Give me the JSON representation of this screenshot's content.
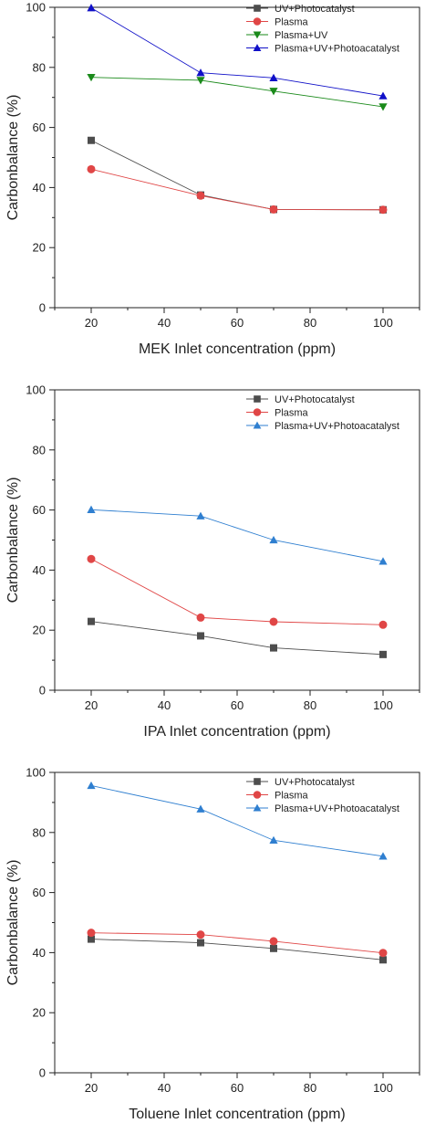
{
  "chart_data": [
    {
      "type": "line",
      "xlabel": "MEK Inlet concentration (ppm)",
      "ylabel": "Carbonbalance (%)",
      "xlim": [
        10,
        110
      ],
      "ylim": [
        0,
        100
      ],
      "xticks": [
        20,
        40,
        60,
        80,
        100
      ],
      "yticks": [
        0,
        20,
        40,
        60,
        80,
        100
      ],
      "x": [
        20,
        50,
        70,
        100
      ],
      "legend_position": "top-right",
      "grid": false,
      "series": [
        {
          "name": "UV+Photocatalyst",
          "values": [
            55.7,
            37.5,
            32.7,
            32.6
          ],
          "color": "#4d4d4d",
          "marker": "square"
        },
        {
          "name": "Plasma",
          "values": [
            46.1,
            37.3,
            32.7,
            32.6
          ],
          "color": "#e04646",
          "marker": "circle"
        },
        {
          "name": "Plasma+UV",
          "values": [
            76.7,
            75.7,
            72.1,
            66.9
          ],
          "color": "#1a8a1a",
          "marker": "triangle-down"
        },
        {
          "name": "Plasma+UV+Photoacatalyst",
          "values": [
            99.8,
            78.2,
            76.5,
            70.5
          ],
          "color": "#1010c8",
          "marker": "triangle-up"
        }
      ]
    },
    {
      "type": "line",
      "xlabel": "IPA Inlet concentration (ppm)",
      "ylabel": "Carbonbalance (%)",
      "xlim": [
        10,
        110
      ],
      "ylim": [
        0,
        100
      ],
      "xticks": [
        20,
        40,
        60,
        80,
        100
      ],
      "yticks": [
        0,
        20,
        40,
        60,
        80,
        100
      ],
      "x": [
        20,
        50,
        70,
        100
      ],
      "legend_position": "top-right",
      "grid": false,
      "series": [
        {
          "name": "UV+Photocatalyst",
          "values": [
            22.9,
            18.1,
            14.1,
            11.9
          ],
          "color": "#4d4d4d",
          "marker": "square"
        },
        {
          "name": "Plasma",
          "values": [
            43.7,
            24.2,
            22.8,
            21.8
          ],
          "color": "#e04646",
          "marker": "circle"
        },
        {
          "name": "Plasma+UV+Photoacatalyst",
          "values": [
            60.1,
            58.0,
            50.0,
            42.9
          ],
          "color": "#2f7fd0",
          "marker": "triangle-up"
        }
      ]
    },
    {
      "type": "line",
      "xlabel": "Toluene Inlet concentration (ppm)",
      "ylabel": "Carbonbalance (%)",
      "xlim": [
        10,
        110
      ],
      "ylim": [
        0,
        100
      ],
      "xticks": [
        20,
        40,
        60,
        80,
        100
      ],
      "yticks": [
        0,
        20,
        40,
        60,
        80,
        100
      ],
      "x": [
        20,
        50,
        70,
        100
      ],
      "legend_position": "top-right",
      "grid": false,
      "series": [
        {
          "name": "UV+Photocatalyst",
          "values": [
            44.5,
            43.3,
            41.4,
            37.6
          ],
          "color": "#4d4d4d",
          "marker": "square"
        },
        {
          "name": "Plasma",
          "values": [
            46.6,
            46.0,
            43.8,
            39.9
          ],
          "color": "#e04646",
          "marker": "circle"
        },
        {
          "name": "Plasma+UV+Photoacatalyst",
          "values": [
            95.6,
            87.8,
            77.4,
            72.1
          ],
          "color": "#2f7fd0",
          "marker": "triangle-up"
        }
      ]
    }
  ]
}
